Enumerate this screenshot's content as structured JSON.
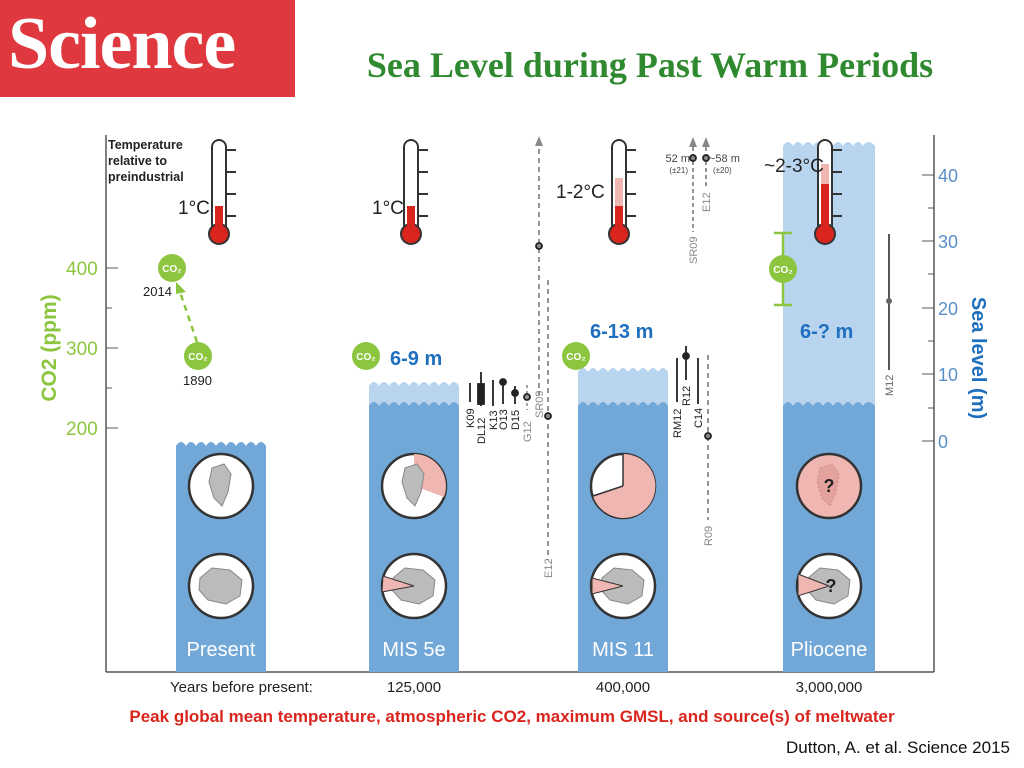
{
  "header": {
    "logo_text": "Science",
    "title": "Sea Level during Past Warm Periods"
  },
  "figure": {
    "temp_caption": [
      "Temperature",
      "relative to",
      "preindustrial"
    ],
    "co2_axis": {
      "label": "CO2 (ppm)",
      "ticks": [
        "400",
        "300",
        "200"
      ]
    },
    "sea_axis": {
      "label": "Sea level (m)",
      "ticks": [
        "40",
        "30",
        "20",
        "10",
        "0"
      ]
    },
    "co2_badge": "CO₂",
    "question_mark": "?",
    "years_label": "Years before present:",
    "periods": [
      {
        "name": "Present",
        "years": "",
        "temp": "1°C",
        "sea_level": ""
      },
      {
        "name": "MIS 5e",
        "years": "125,000",
        "temp": "1°C",
        "sea_level": "6-9 m"
      },
      {
        "name": "MIS 11",
        "years": "400,000",
        "temp": "1-2°C",
        "sea_level": "6-13 m"
      },
      {
        "name": "Pliocene",
        "years": "3,000,000",
        "temp": "~2-3°C",
        "sea_level": "6-? m"
      }
    ],
    "present_co2": [
      {
        "year": "2014",
        "ppm": 400
      },
      {
        "year": "1890",
        "ppm": 290
      }
    ],
    "sources_mis5e": [
      "K09",
      "DL12",
      "K13",
      "O13",
      "D15",
      "G12",
      "SR09",
      "E12"
    ],
    "sources_mis11": [
      "RM12",
      "R12",
      "C14",
      "R09",
      "SR09",
      "E12"
    ],
    "sources_pliocene": [
      "M12"
    ],
    "off_scale": [
      {
        "value": "52 m",
        "err": "(±21)"
      },
      {
        "value": "~58 m",
        "err": "(±20)"
      }
    ]
  },
  "caption": "Peak global mean temperature, atmospheric CO2, maximum GMSL, and source(s) of meltwater",
  "credit": "Dutton, A. et al. Science 2015",
  "colors": {
    "water": "#72a8d8",
    "water_light": "#b9d4ef",
    "co2_green": "#8cc63f",
    "title_green": "#2f8a2f",
    "caption_red": "#d9251d",
    "sea_axis": "#5b8fc9"
  }
}
